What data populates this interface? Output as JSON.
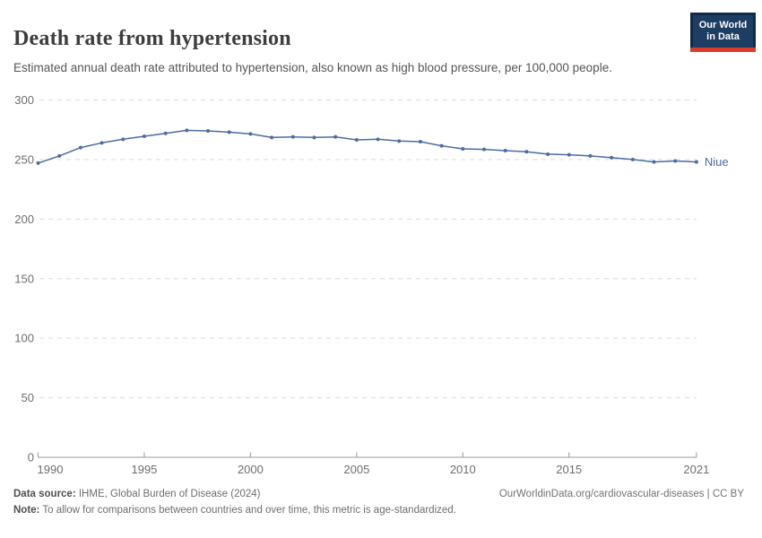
{
  "header": {
    "title": "Death rate from hypertension",
    "subtitle": "Estimated annual death rate attributed to hypertension, also known as high blood pressure, per 100,000 people.",
    "logo": {
      "line1": "Our World",
      "line2": "in Data"
    }
  },
  "chart_data": {
    "type": "line",
    "title": "Death rate from hypertension",
    "x": [
      1990,
      1991,
      1992,
      1993,
      1994,
      1995,
      1996,
      1997,
      1998,
      1999,
      2000,
      2001,
      2002,
      2003,
      2004,
      2005,
      2006,
      2007,
      2008,
      2009,
      2010,
      2011,
      2012,
      2013,
      2014,
      2015,
      2016,
      2017,
      2018,
      2019,
      2020,
      2021
    ],
    "series": [
      {
        "name": "Niue",
        "values": [
          247,
          253,
          260,
          264,
          267,
          269.5,
          272,
          274.5,
          274,
          273,
          271.5,
          268.5,
          269,
          268.5,
          269,
          266.5,
          267,
          265.5,
          265,
          261.5,
          259,
          258.5,
          257.5,
          256.5,
          254.5,
          254,
          253,
          251.5,
          250,
          248,
          248.8,
          248
        ]
      }
    ],
    "xlabel": "",
    "ylabel": "",
    "ylim": [
      0,
      300
    ],
    "xlim": [
      1990,
      2021
    ],
    "y_ticks": [
      0,
      50,
      100,
      150,
      200,
      250,
      300
    ],
    "x_ticks": [
      1990,
      1995,
      2000,
      2005,
      2010,
      2015,
      2021
    ],
    "grid": "horizontal-dashed",
    "legend_position": "end-of-line-label"
  },
  "footer": {
    "datasource_label": "Data source:",
    "datasource_value": " IHME, Global Burden of Disease (2024)",
    "link": "OurWorldinData.org/cardiovascular-diseases | CC BY",
    "note_label": "Note:",
    "note_value": " To allow for comparisons between countries and over time, this metric is age-standardized."
  },
  "colors": {
    "line": "#4c6ca0",
    "entity_label": "#4c6ca0",
    "grid": "#dcdcdc",
    "axis": "#999999",
    "tick_text": "#6e6e6e",
    "title_text": "#3d3d3d",
    "subtitle_text": "#555555",
    "logo_bg": "#1d3d63",
    "logo_border": "#0f2a4a",
    "logo_stripe": "#dc3b2a"
  }
}
